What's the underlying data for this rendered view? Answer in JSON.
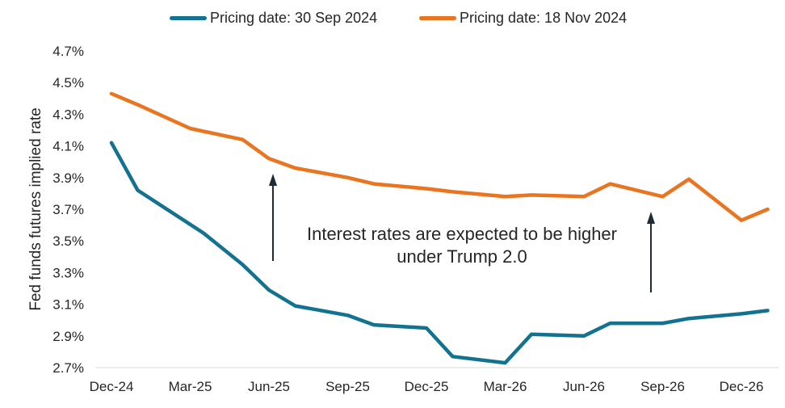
{
  "chart_data": {
    "type": "line",
    "title": "",
    "xlabel": "",
    "ylabel": "Fed funds futures implied rate",
    "x_tick_labels": [
      "Dec-24",
      "Mar-25",
      "Jun-25",
      "Sep-25",
      "Dec-25",
      "Mar-26",
      "Jun-26",
      "Sep-26",
      "Dec-26"
    ],
    "y_tick_labels": [
      "2.7%",
      "2.9%",
      "3.1%",
      "3.3%",
      "3.5%",
      "3.7%",
      "3.9%",
      "4.1%",
      "4.3%",
      "4.5%",
      "4.7%"
    ],
    "ylim": [
      2.7,
      4.7
    ],
    "y_unit": "%",
    "grid": false,
    "legend_position": "top",
    "x": [
      "Dec-24",
      "Jan-25",
      "Mar-25",
      "May-25",
      "Jun-25",
      "Jul-25",
      "Sep-25",
      "Oct-25",
      "Dec-25",
      "Jan-26",
      "Mar-26",
      "Apr-26",
      "Jun-26",
      "Jul-26",
      "Sep-26",
      "Oct-26",
      "Dec-26",
      "Jan-27"
    ],
    "series": [
      {
        "name": "Pricing date: 30 Sep 2024",
        "color": "#13728f",
        "x": [
          0,
          1,
          3.5,
          5,
          6,
          7,
          9,
          10,
          12,
          13,
          15,
          16,
          18,
          19,
          21,
          22,
          24,
          25
        ],
        "values": [
          4.12,
          3.82,
          3.55,
          3.35,
          3.19,
          3.09,
          3.03,
          2.97,
          2.95,
          2.77,
          2.73,
          2.91,
          2.9,
          2.98,
          2.98,
          3.01,
          3.04,
          3.06
        ]
      },
      {
        "name": "Pricing date: 18 Nov 2024",
        "color": "#e97520",
        "x": [
          0,
          1,
          3,
          5,
          6,
          7,
          9,
          10,
          12,
          13,
          15,
          16,
          18,
          19,
          21,
          22,
          24,
          25
        ],
        "values": [
          4.43,
          4.36,
          4.21,
          4.14,
          4.02,
          3.96,
          3.9,
          3.86,
          3.83,
          3.81,
          3.78,
          3.79,
          3.78,
          3.86,
          3.78,
          3.89,
          3.63,
          3.7
        ]
      }
    ],
    "annotations": [
      {
        "text": "Interest rates are expected to be higher under Trump 2.0"
      }
    ]
  }
}
